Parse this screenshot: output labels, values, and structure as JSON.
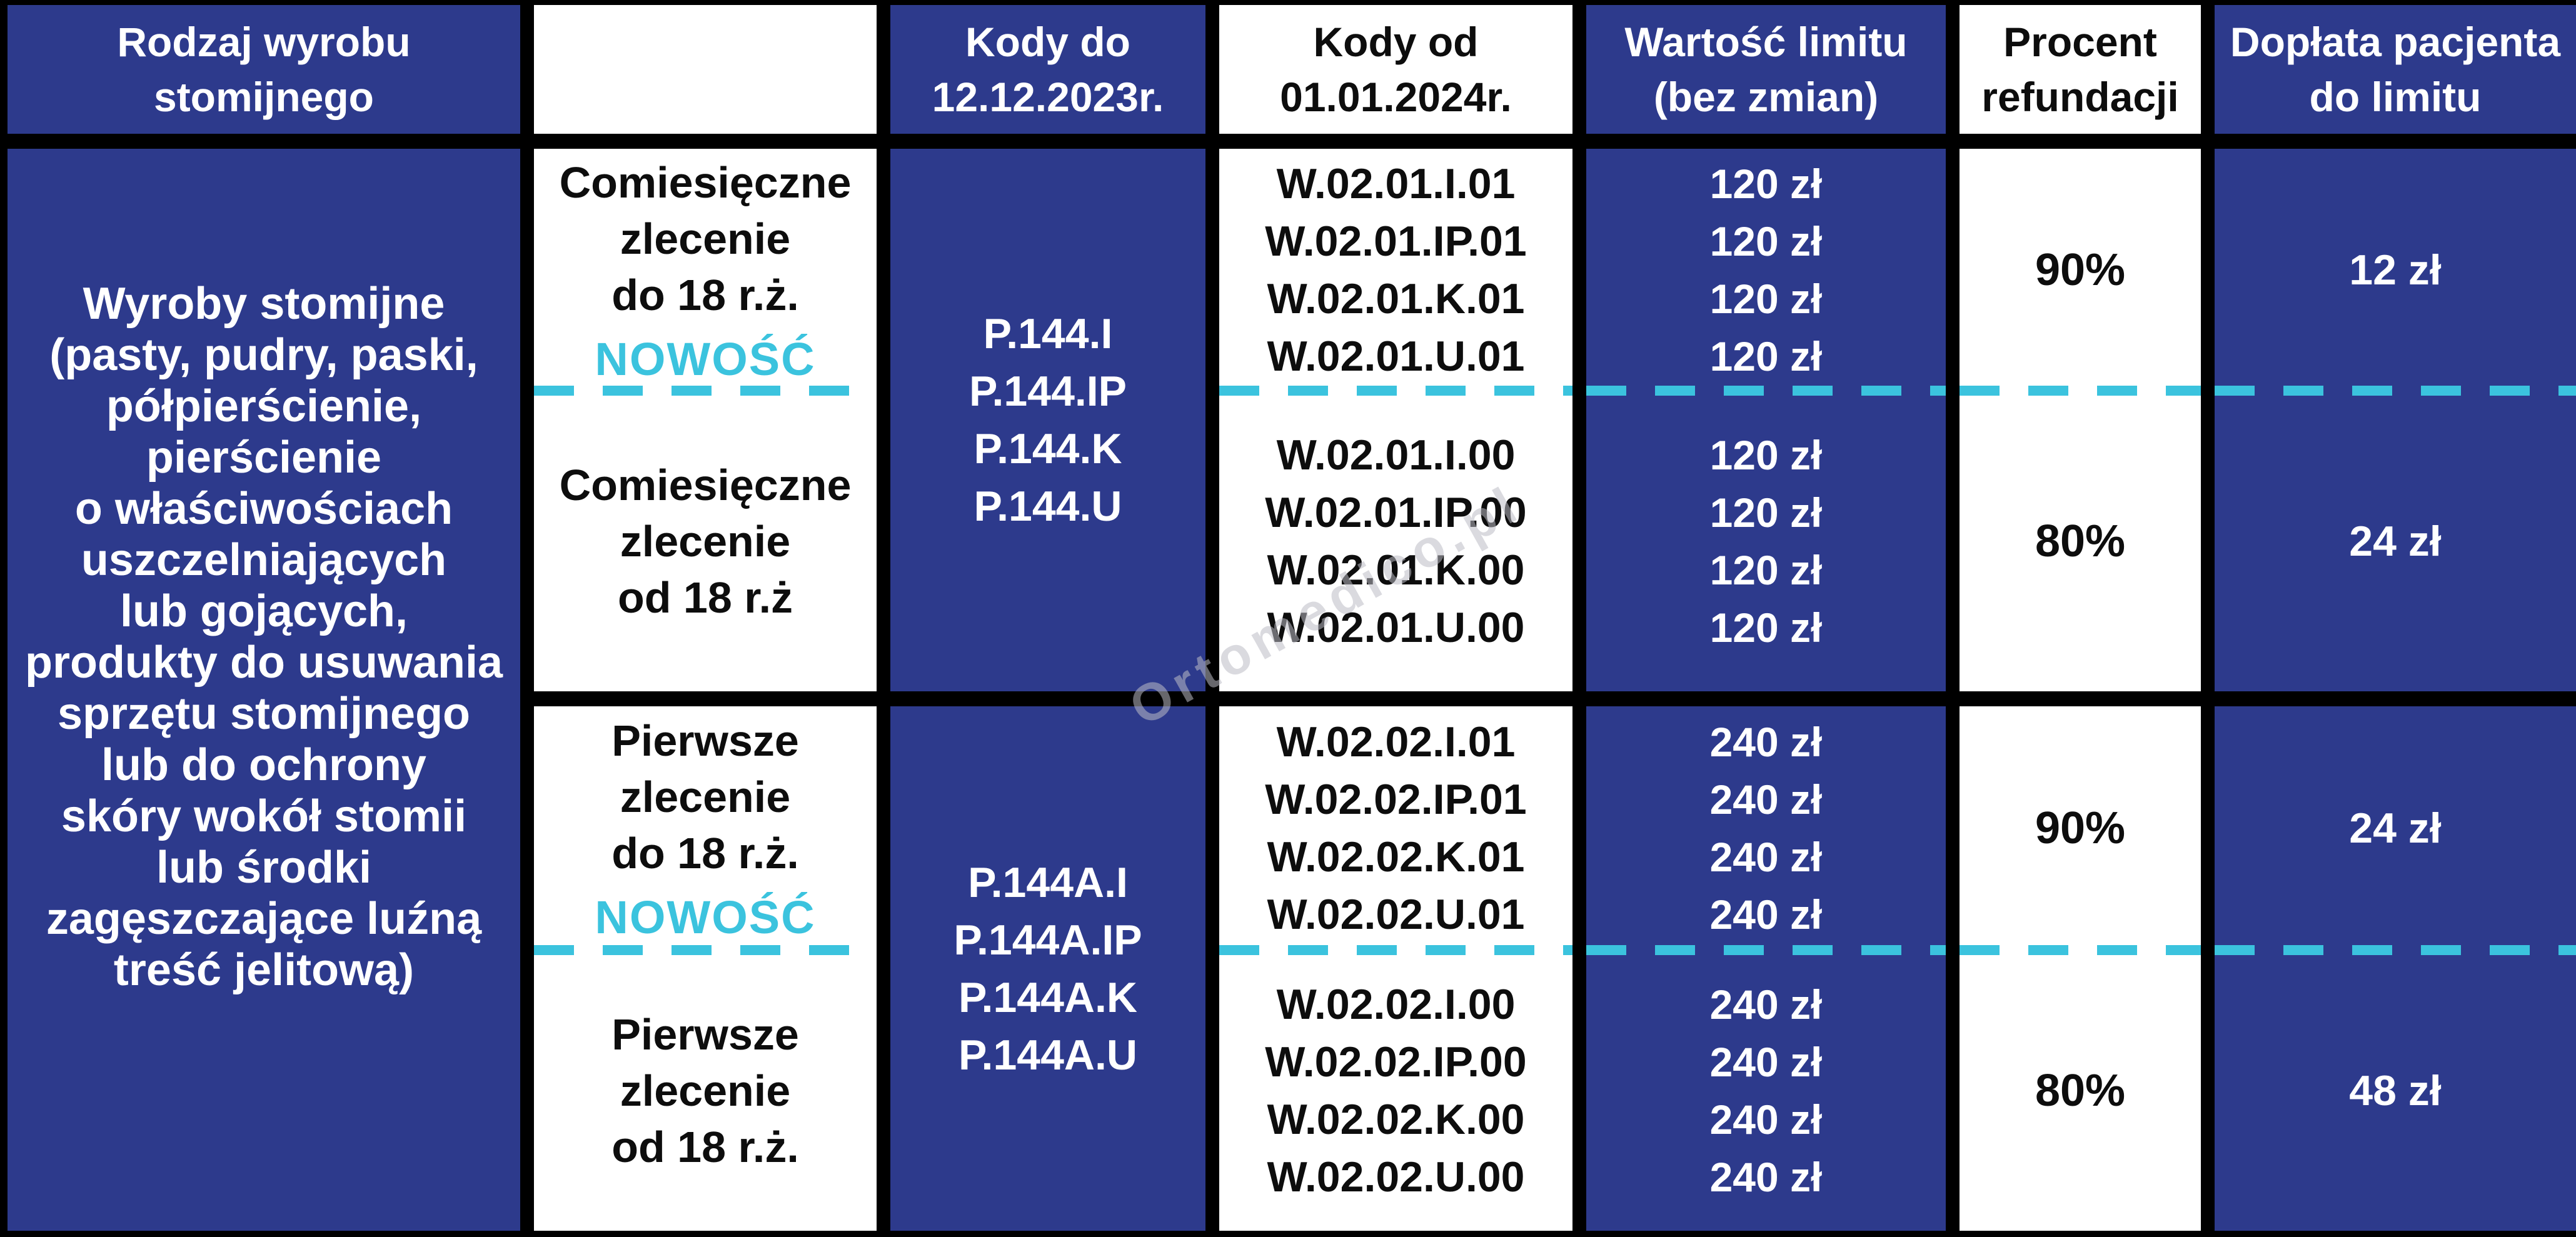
{
  "colors": {
    "navy": "#2d3a8c",
    "cyan": "#3bc3de"
  },
  "watermark": "Ortomedico.pl",
  "table": {
    "header": {
      "col1": "Rodzaj wyrobu stomijnego",
      "col2": "",
      "col3": "Kody do 12.12.2023r.",
      "col4": "Kody od 01.01.2024r.",
      "col5": "Wartość limitu (bez zmian)",
      "col6": "Procent refundacji",
      "col7": "Dopłata pacjenta do limitu"
    },
    "product_description": "Wyroby stomijne\n(pasty, pudry, paski,\npółpierścienie,\npierścienie\no właściwościach\nuszczelniających\nlub gojących,\nprodukty do usuwania\nsprzętu stomijnego\nlub do ochrony\nskóry wokół stomii\nlub środki\nzagęszczające luźną\ntreść jelitową)",
    "groups": [
      {
        "codes_old": "P.144.I\nP.144.IP\nP.144.K\nP.144.U",
        "row_a": {
          "order": "Comiesięczne\nzlecenie\ndo 18 r.ż.",
          "badge": "NOWOŚĆ",
          "codes_new": "W.02.01.I.01\nW.02.01.IP.01\nW.02.01.K.01\nW.02.01.U.01",
          "limit": "120 zł\n120 zł\n120 zł\n120 zł",
          "percent": "90%",
          "copay": "12 zł"
        },
        "row_b": {
          "order": "Comiesięczne\nzlecenie\nod 18 r.ż",
          "codes_new": "W.02.01.I.00\nW.02.01.IP.00\nW.02.01.K.00\nW.02.01.U.00",
          "limit": "120 zł\n120 zł\n120 zł\n120 zł",
          "percent": "80%",
          "copay": "24 zł"
        }
      },
      {
        "codes_old": "P.144A.I\nP.144A.IP\nP.144A.K\nP.144A.U",
        "row_a": {
          "order": "Pierwsze\nzlecenie\ndo 18 r.ż.",
          "badge": "NOWOŚĆ",
          "codes_new": "W.02.02.I.01\nW.02.02.IP.01\nW.02.02.K.01\nW.02.02.U.01",
          "limit": "240 zł\n240 zł\n240 zł\n240 zł",
          "percent": "90%",
          "copay": "24 zł"
        },
        "row_b": {
          "order": "Pierwsze\nzlecenie\nod 18 r.ż.",
          "codes_new": "W.02.02.I.00\nW.02.02.IP.00\nW.02.02.K.00\nW.02.02.U.00",
          "limit": "240 zł\n240 zł\n240 zł\n240 zł",
          "percent": "80%",
          "copay": "48 zł"
        }
      }
    ]
  }
}
